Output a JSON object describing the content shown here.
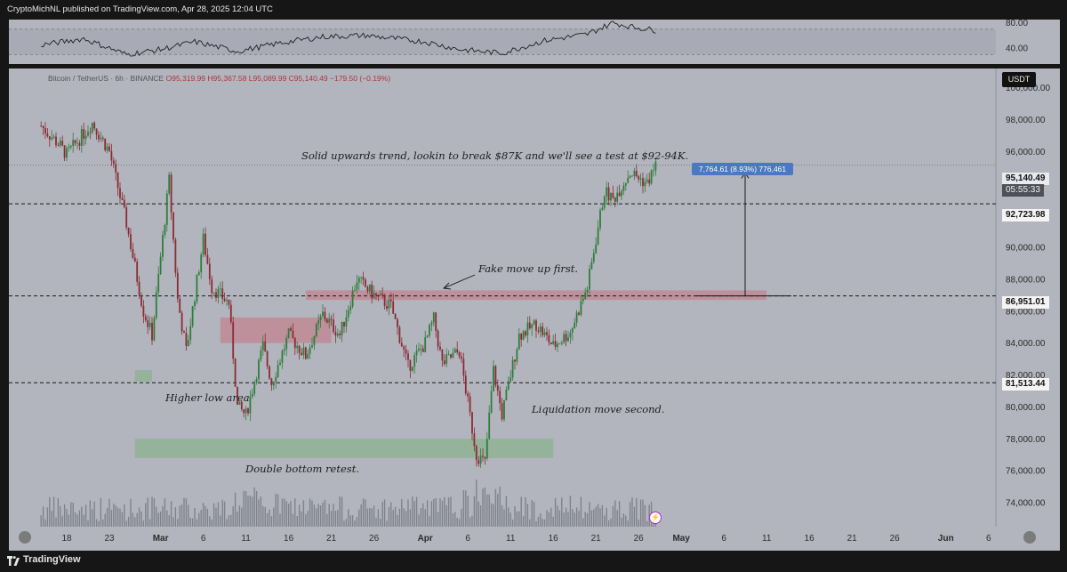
{
  "publisher_line": "CryptoMichNL published on TradingView.com, Apr 28, 2025 12:04 UTC",
  "symbol": {
    "name": "Bitcoin / TetherUS · 6h · BINANCE",
    "open": "O95,319.99",
    "high": "H95,367.58",
    "low": "L95,089.99",
    "close": "C95,140.49",
    "change": "−179.50 (−0.19%)"
  },
  "currency_button": "USDT",
  "footer": {
    "brand": "TradingView"
  },
  "price_labels": {
    "current_price": "95,140.49",
    "countdown": "05:55:33",
    "level_1": "92,723.98",
    "level_2": "86,951.01",
    "level_3": "81,513.44"
  },
  "measure_label": "7,764.61 (8.93%) 776,461",
  "annotations": {
    "trend": "Solid upwards trend, lookin to break $87K and we'll see a test at $92-94K.",
    "fake_move": "Fake move up first.",
    "higher_low": "Higher low area",
    "double_bottom": "Double bottom retest.",
    "liquidation": "Liquidation move second."
  },
  "colors": {
    "background": "#b2b5be",
    "rsi_band": "#a4a7b0",
    "up_candle": "#2f7d3a",
    "down_candle": "#8b2b33",
    "resistance_zone": "#c08a95",
    "support_zone": "#8fb295",
    "measure_box": "#4a78c2"
  },
  "chart_data": [
    {
      "type": "candlestick",
      "title": "Bitcoin / TetherUS · 6h · BINANCE",
      "y_axis": {
        "side": "right",
        "ticks": [
          "100,000.00",
          "98,000.00",
          "96,000.00",
          "94,000.00",
          "92,000.00",
          "90,000.00",
          "88,000.00",
          "86,000.00",
          "84,000.00",
          "82,000.00",
          "80,000.00",
          "78,000.00",
          "76,000.00",
          "74,000.00"
        ],
        "ylim": [
          72500,
          101200
        ]
      },
      "x_axis": {
        "ticks": [
          "18",
          "23",
          "Mar",
          "6",
          "11",
          "16",
          "21",
          "26",
          "Apr",
          "6",
          "11",
          "16",
          "21",
          "26",
          "May",
          "6",
          "11",
          "16",
          "21",
          "26",
          "Jun",
          "6"
        ]
      },
      "series_anchors": {
        "description": "approximate closing-price path (date, price)",
        "x": [
          "Feb 15",
          "Feb 17",
          "Feb 18",
          "Feb 21",
          "Feb 23",
          "Feb 25",
          "Feb 27",
          "Feb 28",
          "Mar 2",
          "Mar 3",
          "Mar 4",
          "Mar 6",
          "Mar 7",
          "Mar 9",
          "Mar 10",
          "Mar 11",
          "Mar 13",
          "Mar 14",
          "Mar 16",
          "Mar 18",
          "Mar 20",
          "Mar 22",
          "Mar 24",
          "Mar 26",
          "Mar 28",
          "Mar 30",
          "Apr 1",
          "Apr 2",
          "Apr 3",
          "Apr 5",
          "Apr 7",
          "Apr 8",
          "Apr 9",
          "Apr 10",
          "Apr 12",
          "Apr 14",
          "Apr 16",
          "Apr 18",
          "Apr 20",
          "Apr 22",
          "Apr 23",
          "Apr 25",
          "Apr 27",
          "Apr 28"
        ],
        "y": [
          97600,
          96500,
          95800,
          97800,
          96000,
          91500,
          86000,
          84500,
          94200,
          86700,
          83500,
          90500,
          87500,
          86500,
          80000,
          79500,
          83800,
          81500,
          84500,
          83200,
          85800,
          84500,
          88000,
          87000,
          86300,
          82500,
          84000,
          85500,
          82700,
          83500,
          77000,
          76500,
          82300,
          79500,
          84500,
          85200,
          83800,
          84700,
          87500,
          93500,
          93000,
          94700,
          94000,
          95140
        ]
      },
      "levels": [
        {
          "price": 92723.98,
          "label": "92,723.98",
          "style": "dashed"
        },
        {
          "price": 86951.01,
          "label": "86,951.01",
          "style": "dashed"
        },
        {
          "price": 81513.44,
          "label": "81,513.44",
          "style": "dashed"
        }
      ],
      "zones": [
        {
          "name": "resistance",
          "from": "Mar 18",
          "to": "May 11",
          "low": 86700,
          "high": 87300
        },
        {
          "name": "resistance",
          "from": "Mar 8",
          "to": "Mar 21",
          "low": 84000,
          "high": 85600
        },
        {
          "name": "support",
          "from": "Feb 26",
          "to": "Apr 16",
          "low": 76800,
          "high": 78000
        },
        {
          "name": "support",
          "from": "Feb 26",
          "to": "Feb 28",
          "low": 81600,
          "high": 82300
        }
      ],
      "measure": {
        "from_price": 86951.01,
        "to_price": 94715.62,
        "label": "7,764.61 (8.93%) 776,461"
      }
    },
    {
      "type": "line",
      "title": "RSI",
      "y_ticks": [
        "80.00",
        "40.00"
      ],
      "ylim": [
        15,
        85
      ],
      "band": [
        30,
        70
      ],
      "x": [
        "Feb 15",
        "Feb 20",
        "Feb 25",
        "Mar 1",
        "Mar 5",
        "Mar 10",
        "Mar 15",
        "Mar 20",
        "Mar 25",
        "Apr 1",
        "Apr 5",
        "Apr 10",
        "Apr 15",
        "Apr 20",
        "Apr 23",
        "Apr 25",
        "Apr 28"
      ],
      "y": [
        45,
        55,
        30,
        38,
        50,
        35,
        48,
        58,
        60,
        50,
        38,
        32,
        52,
        62,
        80,
        74,
        68
      ]
    }
  ]
}
